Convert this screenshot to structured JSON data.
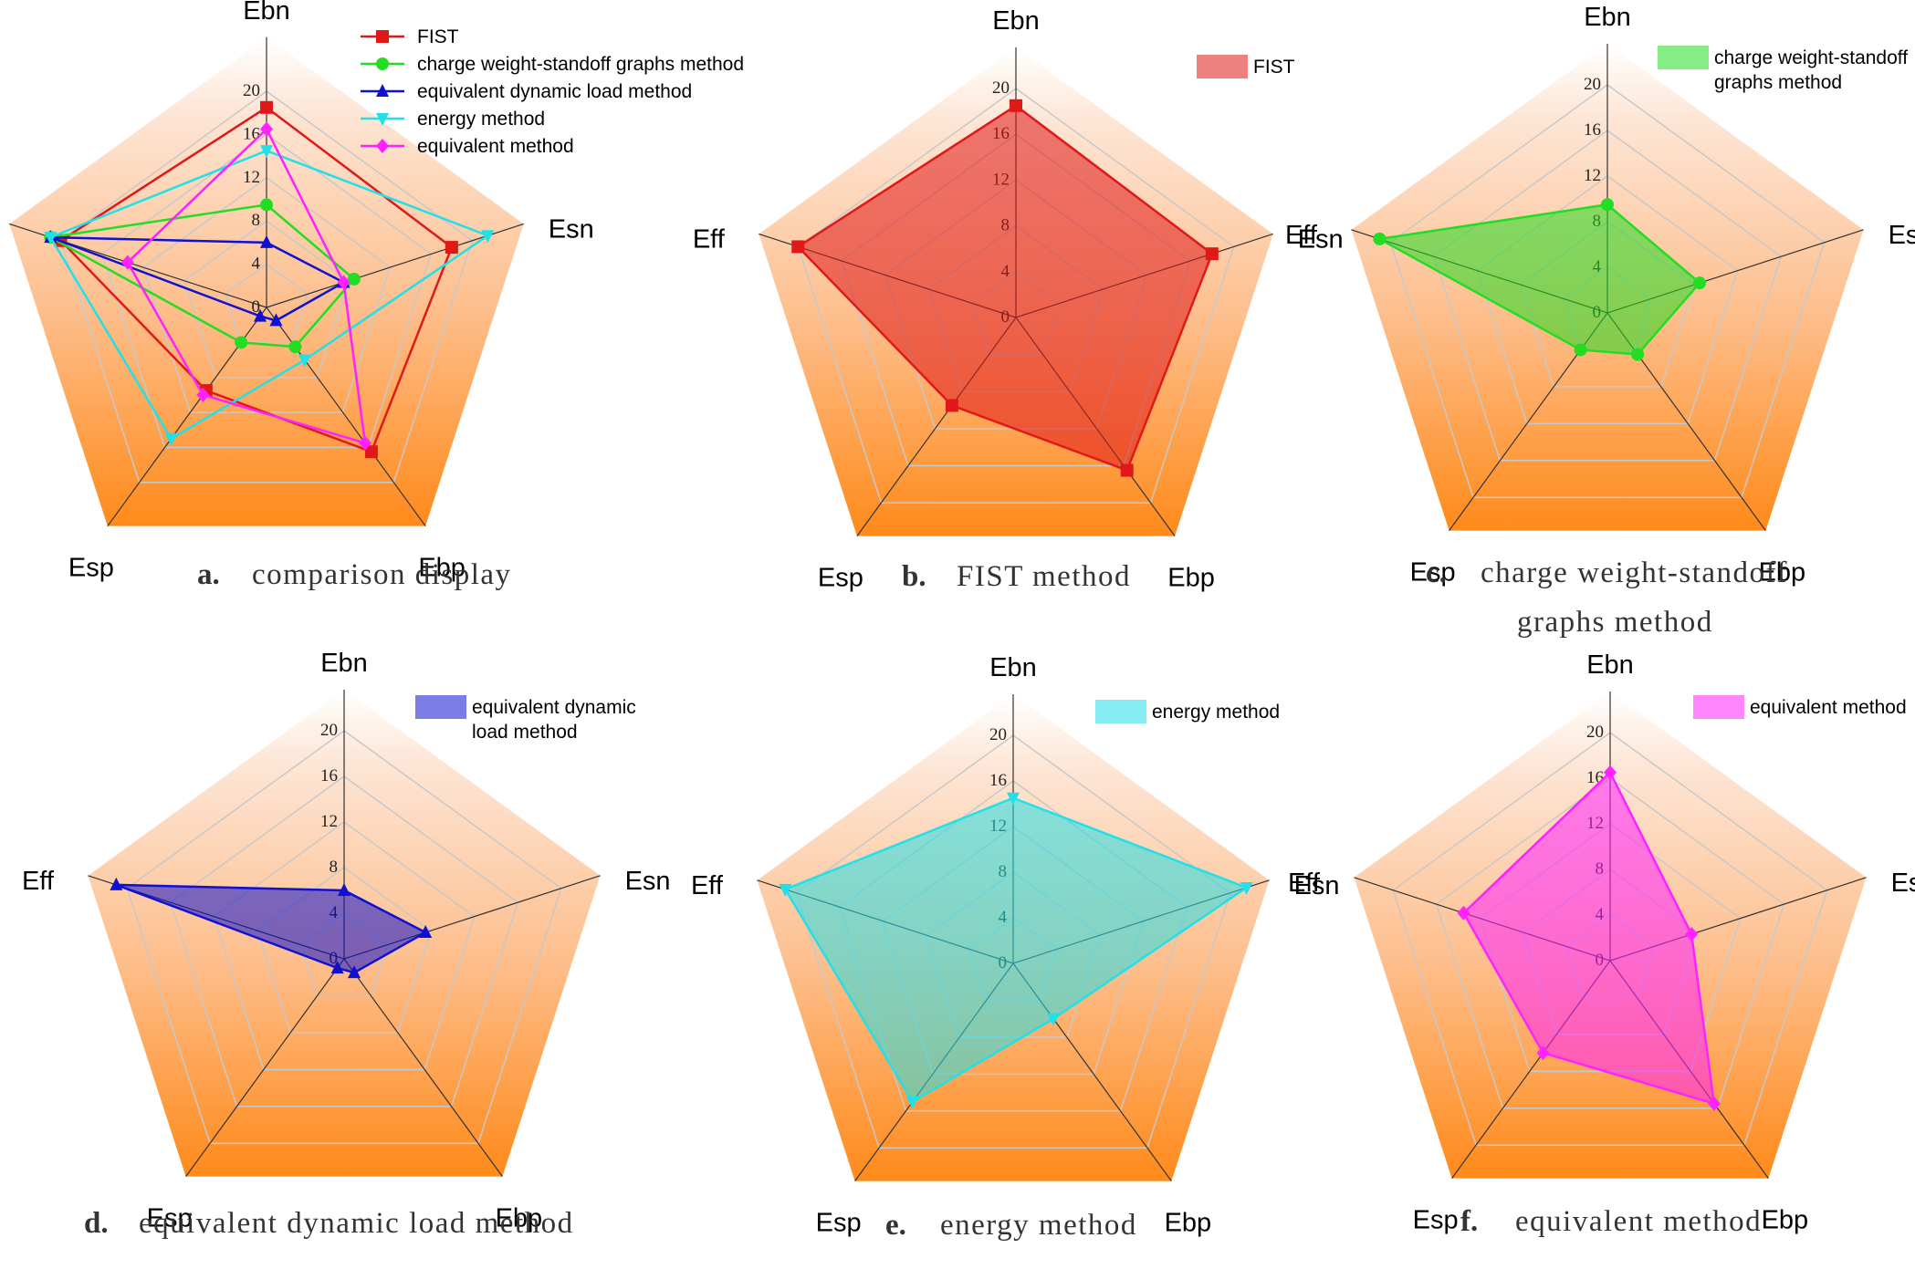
{
  "chart_data": [
    {
      "type": "radar",
      "panel": "a.",
      "caption": [
        "comparison display"
      ],
      "axes": [
        "Ebn",
        "Esn",
        "Ebp",
        "Esp",
        "Eff"
      ],
      "ticks": [
        "0",
        "4",
        "8",
        "12",
        "16",
        "20"
      ],
      "rlim": [
        0,
        20
      ],
      "legend": "top-right",
      "series": [
        {
          "name": "FIST",
          "color": "#e01818",
          "marker": "square",
          "values": [
            18.5,
            18.0,
            16.5,
            9.5,
            20.0
          ]
        },
        {
          "name": "charge weight-standoff graphs method",
          "color": "#22dd22",
          "marker": "circle",
          "values": [
            9.5,
            8.5,
            4.5,
            4.0,
            21.0
          ]
        },
        {
          "name": "equivalent dynamic load method",
          "color": "#1010d0",
          "marker": "triangle-up",
          "values": [
            6.0,
            7.5,
            1.5,
            1.0,
            21.0
          ]
        },
        {
          "name": "energy method",
          "color": "#22e0e8",
          "marker": "triangle-down",
          "values": [
            14.5,
            21.5,
            6.0,
            15.0,
            21.0
          ]
        },
        {
          "name": "equivalent method",
          "color": "#ff22ff",
          "marker": "diamond",
          "values": [
            16.5,
            7.5,
            15.5,
            10.0,
            13.5
          ]
        }
      ]
    },
    {
      "type": "radar",
      "panel": "b.",
      "caption": [
        "FIST method"
      ],
      "axes": [
        "Ebn",
        "Esn",
        "Ebp",
        "Esp",
        "Eff"
      ],
      "ticks": [
        "0",
        "4",
        "8",
        "12",
        "16",
        "20"
      ],
      "rlim": [
        0,
        20
      ],
      "series": [
        {
          "name": "FIST",
          "color": "#e01818",
          "marker": "square",
          "values": [
            18.5,
            18.0,
            16.5,
            9.5,
            20.0
          ]
        }
      ]
    },
    {
      "type": "radar",
      "panel": "c.",
      "caption": [
        "charge weight-standoff",
        "graphs method"
      ],
      "axes": [
        "Ebn",
        "Esn",
        "Ebp",
        "Esp",
        "Eff"
      ],
      "ticks": [
        "0",
        "4",
        "8",
        "12",
        "16",
        "20"
      ],
      "rlim": [
        0,
        20
      ],
      "series": [
        {
          "name": "charge weight-standoff graphs method",
          "color": "#22dd22",
          "marker": "circle",
          "values": [
            9.5,
            8.5,
            4.5,
            4.0,
            21.0
          ]
        }
      ]
    },
    {
      "type": "radar",
      "panel": "d.",
      "caption": [
        "equivalent dynamic load method"
      ],
      "axes": [
        "Ebn",
        "Esn",
        "Ebp",
        "Esp",
        "Eff"
      ],
      "ticks": [
        "0",
        "4",
        "8",
        "12",
        "16",
        "20"
      ],
      "rlim": [
        0,
        20
      ],
      "series": [
        {
          "name": "equivalent dynamic load method",
          "color": "#1010d0",
          "marker": "triangle-up",
          "values": [
            6.0,
            7.5,
            1.5,
            1.0,
            21.0
          ]
        }
      ]
    },
    {
      "type": "radar",
      "panel": "e.",
      "caption": [
        "energy method"
      ],
      "axes": [
        "Ebn",
        "Esn",
        "Ebp",
        "Esp",
        "Eff"
      ],
      "ticks": [
        "0",
        "4",
        "8",
        "12",
        "16",
        "20"
      ],
      "rlim": [
        0,
        20
      ],
      "series": [
        {
          "name": "energy method",
          "color": "#22e0e8",
          "marker": "triangle-down",
          "values": [
            14.5,
            21.5,
            6.0,
            15.0,
            21.0
          ]
        }
      ]
    },
    {
      "type": "radar",
      "panel": "f.",
      "caption": [
        "equivalent method"
      ],
      "axes": [
        "Ebn",
        "Esn",
        "Ebp",
        "Esp",
        "Eff"
      ],
      "ticks": [
        "0",
        "4",
        "8",
        "12",
        "16",
        "20"
      ],
      "rlim": [
        0,
        20
      ],
      "series": [
        {
          "name": "equivalent method",
          "color": "#ff22ff",
          "marker": "diamond",
          "values": [
            16.5,
            7.5,
            15.5,
            10.0,
            13.5
          ]
        }
      ]
    }
  ],
  "legend_lines": {
    "a": [
      "FIST",
      "charge weight-standoff graphs method",
      "equivalent dynamic load method",
      "energy method",
      "equivalent method"
    ],
    "b": [
      "FIST"
    ],
    "c": [
      "charge weight-standoff",
      "graphs method"
    ],
    "d": [
      "equivalent dynamic",
      "load method"
    ],
    "e": [
      "energy method"
    ],
    "f": [
      "equivalent method"
    ]
  },
  "colors": {
    "background_top": "#ffffff",
    "background_bottom": "#ff8a1a",
    "grid": "#c8c8c8",
    "axis": "#333333"
  }
}
